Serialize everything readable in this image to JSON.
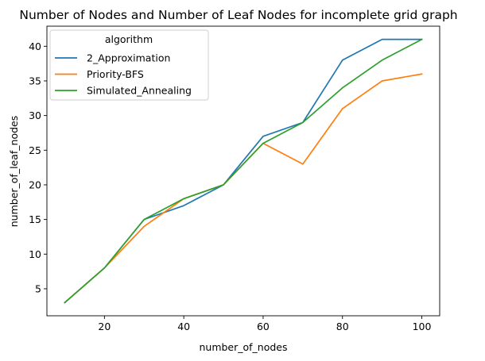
{
  "chart_data": {
    "type": "line",
    "title": "Number of Nodes and Number of Leaf Nodes for incomplete grid graph",
    "xlabel": "number_of_nodes",
    "ylabel": "number_of_leaf_nodes",
    "x": [
      10,
      20,
      30,
      40,
      50,
      60,
      70,
      80,
      90,
      100
    ],
    "xticks": [
      20,
      40,
      60,
      80,
      100
    ],
    "yticks": [
      5,
      10,
      15,
      20,
      25,
      30,
      35,
      40
    ],
    "xlim": [
      5.5,
      104.5
    ],
    "ylim": [
      1.1,
      42.9
    ],
    "grid": false,
    "legend": {
      "title": "algorithm",
      "position": "top-left"
    },
    "series": [
      {
        "name": "2_Approximation",
        "color": "#1f77b4",
        "values": [
          3,
          8,
          15,
          17,
          20,
          27,
          29,
          38,
          41,
          41
        ]
      },
      {
        "name": "Priority-BFS",
        "color": "#ff7f0e",
        "values": [
          3,
          8,
          14,
          18,
          20,
          26,
          23,
          31,
          35,
          36
        ]
      },
      {
        "name": "Simulated_Annealing",
        "color": "#2ca02c",
        "values": [
          3,
          8,
          15,
          18,
          20,
          26,
          29,
          34,
          38,
          41
        ]
      }
    ]
  }
}
